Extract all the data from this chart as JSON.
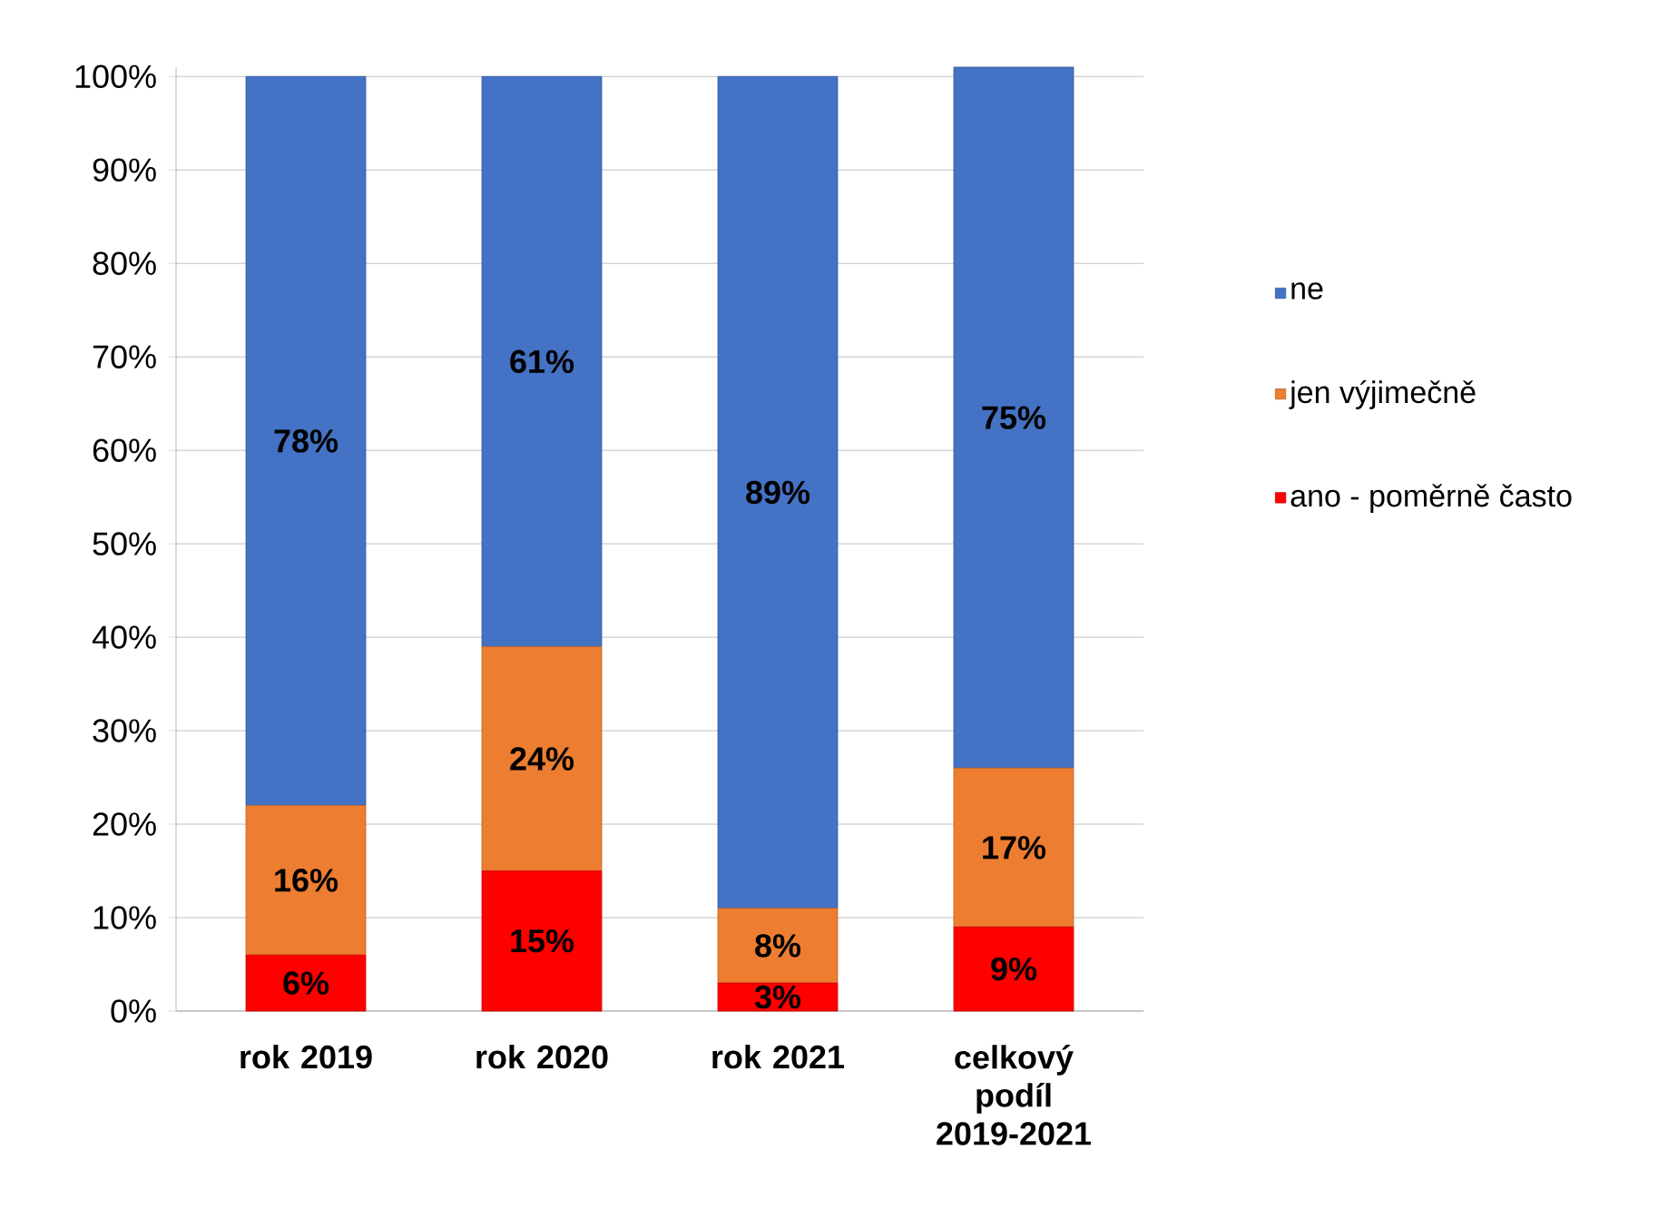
{
  "chart_data": {
    "type": "bar",
    "stacked": true,
    "categories": [
      "rok 2019",
      "rok 2020",
      "rok 2021",
      "celkový podíl 2019-2021"
    ],
    "series": [
      {
        "name": "ano - poměrně často",
        "color": "#ff0000",
        "values": [
          6,
          15,
          3,
          9
        ],
        "value_labels": [
          "6%",
          "15%",
          "3%",
          "9%"
        ]
      },
      {
        "name": "jen výjimečně",
        "color": "#ed7d31",
        "values": [
          16,
          24,
          8,
          17
        ],
        "value_labels": [
          "16%",
          "24%",
          "8%",
          "17%"
        ]
      },
      {
        "name": "ne",
        "color": "#4472c4",
        "values": [
          78,
          61,
          89,
          75
        ],
        "value_labels": [
          "78%",
          "61%",
          "89%",
          "75%"
        ]
      }
    ],
    "ylim": [
      0,
      101
    ],
    "yticks": [
      {
        "value": 0,
        "label": "0%"
      },
      {
        "value": 10,
        "label": "10%"
      },
      {
        "value": 20,
        "label": "20%"
      },
      {
        "value": 30,
        "label": "30%"
      },
      {
        "value": 40,
        "label": "40%"
      },
      {
        "value": 50,
        "label": "50%"
      },
      {
        "value": 60,
        "label": "60%"
      },
      {
        "value": 70,
        "label": "70%"
      },
      {
        "value": 80,
        "label": "80%"
      },
      {
        "value": 90,
        "label": "90%"
      },
      {
        "value": 100,
        "label": "100%"
      }
    ],
    "grid": "y",
    "legend": "right"
  }
}
